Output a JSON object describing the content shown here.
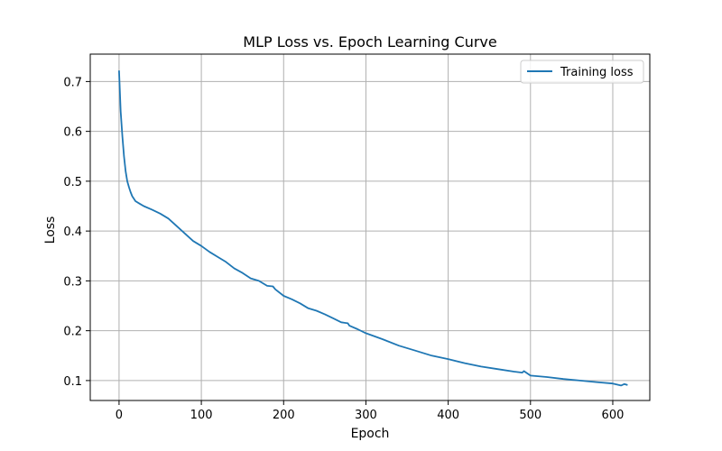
{
  "chart_data": {
    "type": "line",
    "title": "MLP Loss vs. Epoch Learning Curve",
    "xlabel": "Epoch",
    "ylabel": "Loss",
    "xlim": [
      -35,
      645
    ],
    "ylim": [
      0.06,
      0.755
    ],
    "xticks": [
      0,
      100,
      200,
      300,
      400,
      500,
      600
    ],
    "xtick_labels": [
      "0",
      "100",
      "200",
      "300",
      "400",
      "500",
      "600"
    ],
    "yticks": [
      0.1,
      0.2,
      0.3,
      0.4,
      0.5,
      0.6,
      0.7
    ],
    "ytick_labels": [
      "0.1",
      "0.2",
      "0.3",
      "0.4",
      "0.5",
      "0.6",
      "0.7"
    ],
    "grid": true,
    "legend_position": "top-right",
    "series": [
      {
        "name": "Training loss",
        "color": "#1f77b4",
        "x": [
          0,
          2,
          4,
          6,
          8,
          10,
          12,
          14,
          16,
          18,
          20,
          25,
          30,
          40,
          50,
          60,
          70,
          80,
          90,
          100,
          110,
          120,
          130,
          140,
          150,
          160,
          170,
          180,
          187,
          190,
          200,
          210,
          220,
          230,
          240,
          250,
          260,
          270,
          278,
          280,
          290,
          300,
          320,
          340,
          360,
          380,
          400,
          420,
          440,
          460,
          480,
          490,
          492,
          500,
          520,
          540,
          560,
          580,
          600,
          610,
          614,
          618
        ],
        "y": [
          0.722,
          0.64,
          0.59,
          0.55,
          0.52,
          0.5,
          0.488,
          0.478,
          0.47,
          0.465,
          0.46,
          0.455,
          0.45,
          0.443,
          0.435,
          0.425,
          0.41,
          0.395,
          0.38,
          0.37,
          0.358,
          0.348,
          0.338,
          0.325,
          0.316,
          0.305,
          0.3,
          0.29,
          0.289,
          0.283,
          0.27,
          0.263,
          0.255,
          0.245,
          0.24,
          0.233,
          0.225,
          0.217,
          0.215,
          0.21,
          0.203,
          0.195,
          0.183,
          0.17,
          0.16,
          0.15,
          0.143,
          0.135,
          0.128,
          0.123,
          0.118,
          0.116,
          0.119,
          0.11,
          0.107,
          0.103,
          0.1,
          0.097,
          0.094,
          0.09,
          0.093,
          0.091
        ]
      }
    ]
  }
}
